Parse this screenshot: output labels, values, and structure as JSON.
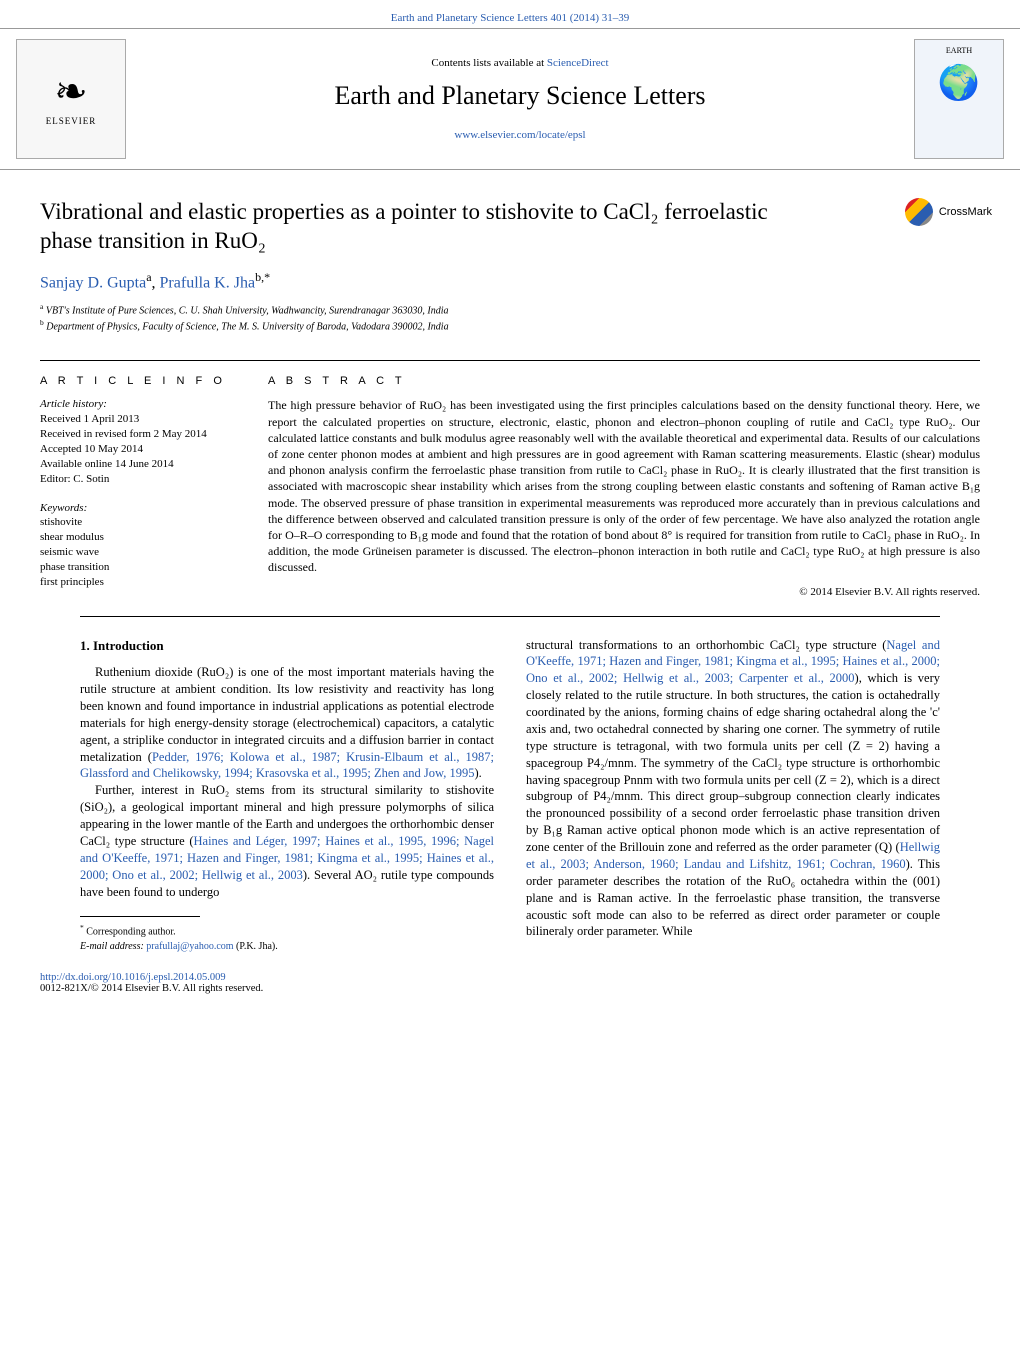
{
  "colors": {
    "link": "#2a5db0",
    "text": "#000000",
    "rule": "#000000",
    "bg": "#ffffff"
  },
  "header": {
    "citation": "Earth and Planetary Science Letters 401 (2014) 31–39"
  },
  "banner": {
    "contents_prefix": "Contents lists available at ",
    "contents_link": "ScienceDirect",
    "journal_name": "Earth and Planetary Science Letters",
    "journal_url": "www.elsevier.com/locate/epsl",
    "publisher_logo_text": "ELSEVIER",
    "cover_label": "EARTH"
  },
  "crossmark": {
    "label": "CrossMark"
  },
  "article": {
    "title": "Vibrational and elastic properties as a pointer to stishovite to CaCl₂ ferroelastic phase transition in RuO₂",
    "authors_html": "Sanjay D. Gupta",
    "author2": "Prafulla K. Jha",
    "sup_a": "a",
    "sup_b": "b,*",
    "aff_a": "VBT's Institute of Pure Sciences, C. U. Shah University, Wadhwancity, Surendranagar 363030, India",
    "aff_b": "Department of Physics, Faculty of Science, The M. S. University of Baroda, Vadodara 390002, India"
  },
  "info": {
    "header": "A R T I C L E   I N F O",
    "history_label": "Article history:",
    "history_lines": [
      "Received 1 April 2013",
      "Received in revised form 2 May 2014",
      "Accepted 10 May 2014",
      "Available online 14 June 2014",
      "Editor: C. Sotin"
    ],
    "keywords_label": "Keywords:",
    "keywords": [
      "stishovite",
      "shear modulus",
      "seismic wave",
      "phase transition",
      "first principles"
    ]
  },
  "abstract": {
    "header": "A B S T R A C T",
    "text": "The high pressure behavior of RuO₂ has been investigated using the first principles calculations based on the density functional theory. Here, we report the calculated properties on structure, electronic, elastic, phonon and electron–phonon coupling of rutile and CaCl₂ type RuO₂. Our calculated lattice constants and bulk modulus agree reasonably well with the available theoretical and experimental data. Results of our calculations of zone center phonon modes at ambient and high pressures are in good agreement with Raman scattering measurements. Elastic (shear) modulus and phonon analysis confirm the ferroelastic phase transition from rutile to CaCl₂ phase in RuO₂. It is clearly illustrated that the first transition is associated with macroscopic shear instability which arises from the strong coupling between elastic constants and softening of Raman active B₁g mode. The observed pressure of phase transition in experimental measurements was reproduced more accurately than in previous calculations and the difference between observed and calculated transition pressure is only of the order of few percentage. We have also analyzed the rotation angle for O–R–O corresponding to B₁g mode and found that the rotation of bond about 8° is required for transition from rutile to CaCl₂ phase in RuO₂. In addition, the mode Grüneisen parameter is discussed. The electron–phonon interaction in both rutile and CaCl₂ type RuO₂ at high pressure is also discussed.",
    "copyright": "© 2014 Elsevier B.V. All rights reserved."
  },
  "body": {
    "section_heading": "1. Introduction",
    "col1_p1": "Ruthenium dioxide (RuO₂) is one of the most important materials having the rutile structure at ambient condition. Its low resistivity and reactivity has long been known and found importance in industrial applications as potential electrode materials for high energy-density storage (electrochemical) capacitors, a catalytic agent, a striplike conductor in integrated circuits and a diffusion barrier in contact metalization (",
    "col1_ref1": "Pedder, 1976; Kolowa et al., 1987; Krusin-Elbaum et al., 1987; Glassford and Chelikowsky, 1994; Krasovska et al., 1995; Zhen and Jow, 1995",
    "col1_p1_end": ").",
    "col1_p2": "Further, interest in RuO₂ stems from its structural similarity to stishovite (SiO₂), a geological important mineral and high pressure polymorphs of silica appearing in the lower mantle of the Earth and undergoes the orthorhombic denser CaCl₂ type structure (",
    "col1_ref2": "Haines and Léger, 1997; Haines et al., 1995, 1996; Nagel and O'Keeffe, 1971; Hazen and Finger, 1981; Kingma et al., 1995; Haines et al., 2000; Ono et al., 2002; Hellwig et al., 2003",
    "col1_p2_end": "). Several AO₂ rutile type compounds have been found to undergo",
    "col2_p1_start": "structural transformations to an orthorhombic CaCl₂ type structure (",
    "col2_ref1": "Nagel and O'Keeffe, 1971; Hazen and Finger, 1981; Kingma et al., 1995; Haines et al., 2000; Ono et al., 2002; Hellwig et al., 2003; Carpenter et al., 2000",
    "col2_p1_mid": "), which is very closely related to the rutile structure. In both structures, the cation is octahedrally coordinated by the anions, forming chains of edge sharing octahedral along the 'c' axis and, two octahedral connected by sharing one corner. The symmetry of rutile type structure is tetragonal, with two formula units per cell (Z = 2) having a spacegroup P4₂/mnm. The symmetry of the CaCl₂ type structure is orthorhombic having spacegroup Pnnm with two formula units per cell (Z = 2), which is a direct subgroup of P4₂/mnm. This direct group–subgroup connection clearly indicates the pronounced possibility of a second order ferroelastic phase transition driven by B₁g Raman active optical phonon mode which is an active representation of zone center of the Brillouin zone and referred as the order parameter (Q) (",
    "col2_ref2": "Hellwig et al., 2003; Anderson, 1960; Landau and Lifshitz, 1961; Cochran, 1960",
    "col2_p1_end": "). This order parameter describes the rotation of the RuO₆ octahedra within the (001) plane and is Raman active. In the ferroelastic phase transition, the transverse acoustic soft mode can also to be referred as direct order parameter or couple bilineraly order parameter. While"
  },
  "footnotes": {
    "corr": "Corresponding author.",
    "email_label": "E-mail address:",
    "email": "prafullaj@yahoo.com",
    "email_name": "(P.K. Jha)."
  },
  "footer": {
    "doi": "http://dx.doi.org/10.1016/j.epsl.2014.05.009",
    "issn_line": "0012-821X/© 2014 Elsevier B.V. All rights reserved."
  }
}
